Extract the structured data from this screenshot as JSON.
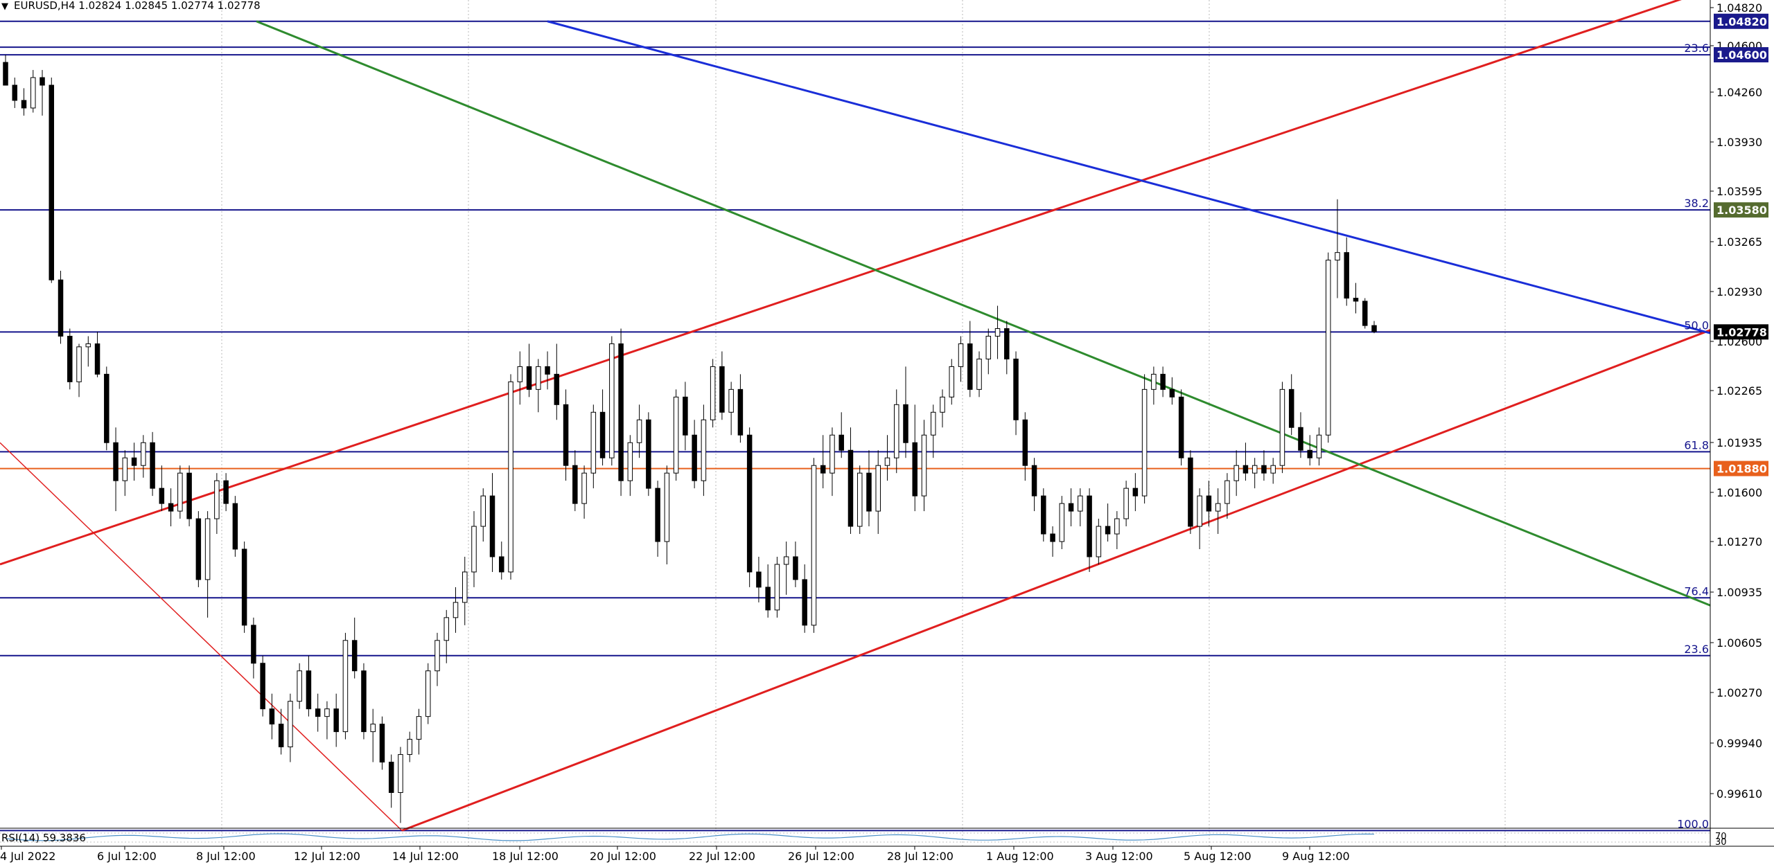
{
  "header": {
    "symbol_line": "EURUSD,H4  1.02824 1.02845 1.02774 1.02778"
  },
  "price_axis": {
    "ticks": [
      "1.04820",
      "1.04600",
      "1.04260",
      "1.03930",
      "1.03595",
      "1.03265",
      "1.02930",
      "1.02600",
      "1.02265",
      "1.01935",
      "1.01600",
      "1.01270",
      "1.00935",
      "1.00605",
      "1.00270",
      "0.99940",
      "0.99610"
    ],
    "current_price": "1.02778",
    "level_tags": [
      {
        "price": 1.0482,
        "label": "1.04820",
        "color": "#1a1a8c"
      },
      {
        "price": 1.046,
        "label": "1.04600",
        "color": "#1a1a8c"
      },
      {
        "price": 1.0358,
        "label": "1.03580",
        "color": "#556b2f"
      },
      {
        "price": 1.02778,
        "label": "1.02778",
        "color": "#000000"
      },
      {
        "price": 1.0188,
        "label": "1.01880",
        "color": "#e8601c"
      }
    ]
  },
  "time_axis": {
    "labels": [
      "4 Jul 2022",
      "6 Jul 12:00",
      "8 Jul 12:00",
      "12 Jul 12:00",
      "14 Jul 12:00",
      "18 Jul 12:00",
      "20 Jul 12:00",
      "22 Jul 12:00",
      "26 Jul 12:00",
      "28 Jul 12:00",
      "1 Aug 12:00",
      "3 Aug 12:00",
      "5 Aug 12:00",
      "9 Aug 12:00"
    ]
  },
  "fibonacci": {
    "levels": [
      {
        "label": "23.6",
        "price": 1.046
      },
      {
        "label": "38.2",
        "price": 1.0358
      },
      {
        "label": "50.0",
        "price": 1.02778
      },
      {
        "label": "61.8",
        "price": 1.0199
      },
      {
        "label": "76.4",
        "price": 1.0103
      },
      {
        "label": "23.6",
        "price": 1.0065
      },
      {
        "label": "100.0",
        "price": 0.995
      }
    ],
    "top_line_price": 1.0482,
    "extra_top_price": 1.0465,
    "orange_line_price": 1.0188
  },
  "indicator": {
    "label": "RSI(14) 59.3836",
    "scale_top": "70",
    "scale_bottom": "30"
  },
  "colors": {
    "fib_line": "#14148c",
    "blue_trend": "#1a2ed8",
    "green_trend": "#2e8b2e",
    "red_trend": "#e01f1f",
    "orange_line": "#e8601c",
    "bull_candle_fill": "#ffffff",
    "bear_candle_fill": "#000000"
  },
  "candles": [
    [
      1.0455,
      1.046,
      1.044,
      1.044
    ],
    [
      1.044,
      1.0445,
      1.0425,
      1.043
    ],
    [
      1.043,
      1.0438,
      1.042,
      1.0425
    ],
    [
      1.0425,
      1.045,
      1.0422,
      1.0445
    ],
    [
      1.0445,
      1.045,
      1.042,
      1.044
    ],
    [
      1.044,
      1.0445,
      1.031,
      1.0312
    ],
    [
      1.0312,
      1.0318,
      1.027,
      1.0275
    ],
    [
      1.0275,
      1.028,
      1.024,
      1.0245
    ],
    [
      1.0245,
      1.027,
      1.0235,
      1.0268
    ],
    [
      1.0268,
      1.0275,
      1.0255,
      1.027
    ],
    [
      1.027,
      1.0278,
      1.0248,
      1.025
    ],
    [
      1.025,
      1.0255,
      1.02,
      1.0205
    ],
    [
      1.0205,
      1.0215,
      1.016,
      1.018
    ],
    [
      1.018,
      1.02,
      1.017,
      1.0195
    ],
    [
      1.0195,
      1.0205,
      1.018,
      1.019
    ],
    [
      1.019,
      1.021,
      1.0182,
      1.0205
    ],
    [
      1.0205,
      1.0212,
      1.017,
      1.0175
    ],
    [
      1.0175,
      1.019,
      1.016,
      1.0165
    ],
    [
      1.0165,
      1.0175,
      1.015,
      1.016
    ],
    [
      1.016,
      1.019,
      1.0155,
      1.0185
    ],
    [
      1.0185,
      1.019,
      1.015,
      1.0155
    ],
    [
      1.0155,
      1.016,
      1.011,
      1.0115
    ],
    [
      1.0115,
      1.016,
      1.009,
      1.0155
    ],
    [
      1.0155,
      1.0185,
      1.0145,
      1.018
    ],
    [
      1.018,
      1.0185,
      1.016,
      1.0165
    ],
    [
      1.0165,
      1.017,
      1.013,
      1.0135
    ],
    [
      1.0135,
      1.014,
      1.008,
      1.0085
    ],
    [
      1.0085,
      1.009,
      1.005,
      1.006
    ],
    [
      1.006,
      1.0065,
      1.0025,
      1.003
    ],
    [
      1.003,
      1.004,
      1.001,
      1.002
    ],
    [
      1.002,
      1.003,
      1.0,
      1.0005
    ],
    [
      1.0005,
      1.004,
      0.9995,
      1.0035
    ],
    [
      1.0035,
      1.006,
      1.003,
      1.0055
    ],
    [
      1.0055,
      1.0065,
      1.0025,
      1.003
    ],
    [
      1.003,
      1.004,
      1.0015,
      1.0025
    ],
    [
      1.0025,
      1.0035,
      1.001,
      1.003
    ],
    [
      1.003,
      1.004,
      1.0005,
      1.0015
    ],
    [
      1.0015,
      1.008,
      1.001,
      1.0075
    ],
    [
      1.0075,
      1.009,
      1.005,
      1.0055
    ],
    [
      1.0055,
      1.006,
      1.001,
      1.0015
    ],
    [
      1.0015,
      1.003,
      0.9995,
      1.002
    ],
    [
      1.002,
      1.0025,
      0.999,
      0.9995
    ],
    [
      0.9995,
      1.0,
      0.9965,
      0.9975
    ],
    [
      0.9975,
      1.0005,
      0.9955,
      1.0
    ],
    [
      1.0,
      1.0015,
      0.9995,
      1.001
    ],
    [
      1.001,
      1.003,
      1.0,
      1.0025
    ],
    [
      1.0025,
      1.006,
      1.002,
      1.0055
    ],
    [
      1.0055,
      1.008,
      1.0045,
      1.0075
    ],
    [
      1.0075,
      1.0095,
      1.006,
      1.009
    ],
    [
      1.009,
      1.011,
      1.008,
      1.01
    ],
    [
      1.01,
      1.013,
      1.0085,
      1.012
    ],
    [
      1.012,
      1.016,
      1.011,
      1.015
    ],
    [
      1.015,
      1.0175,
      1.014,
      1.017
    ],
    [
      1.017,
      1.0185,
      1.012,
      1.013
    ],
    [
      1.013,
      1.014,
      1.0115,
      1.012
    ],
    [
      1.012,
      1.025,
      1.0115,
      1.0245
    ],
    [
      1.0245,
      1.0265,
      1.023,
      1.0255
    ],
    [
      1.0255,
      1.027,
      1.0235,
      1.024
    ],
    [
      1.024,
      1.026,
      1.0225,
      1.0255
    ],
    [
      1.0255,
      1.0265,
      1.024,
      1.025
    ],
    [
      1.025,
      1.027,
      1.022,
      1.023
    ],
    [
      1.023,
      1.024,
      1.018,
      1.019
    ],
    [
      1.019,
      1.02,
      1.016,
      1.0165
    ],
    [
      1.0165,
      1.019,
      1.0155,
      1.0185
    ],
    [
      1.0185,
      1.023,
      1.0175,
      1.0225
    ],
    [
      1.0225,
      1.024,
      1.019,
      1.0195
    ],
    [
      1.0195,
      1.0275,
      1.019,
      1.027
    ],
    [
      1.027,
      1.028,
      1.017,
      1.018
    ],
    [
      1.018,
      1.021,
      1.017,
      1.0205
    ],
    [
      1.0205,
      1.023,
      1.0195,
      1.022
    ],
    [
      1.022,
      1.0225,
      1.017,
      1.0175
    ],
    [
      1.0175,
      1.018,
      1.013,
      1.014
    ],
    [
      1.014,
      1.019,
      1.0125,
      1.0185
    ],
    [
      1.0185,
      1.024,
      1.018,
      1.0235
    ],
    [
      1.0235,
      1.0245,
      1.02,
      1.021
    ],
    [
      1.021,
      1.022,
      1.0175,
      1.018
    ],
    [
      1.018,
      1.023,
      1.017,
      1.022
    ],
    [
      1.022,
      1.026,
      1.0215,
      1.0255
    ],
    [
      1.0255,
      1.0265,
      1.022,
      1.0225
    ],
    [
      1.0225,
      1.0245,
      1.021,
      1.024
    ],
    [
      1.024,
      1.025,
      1.0205,
      1.021
    ],
    [
      1.021,
      1.0215,
      1.011,
      1.012
    ],
    [
      1.012,
      1.013,
      1.01,
      1.011
    ],
    [
      1.011,
      1.0125,
      1.009,
      1.0095
    ],
    [
      1.0095,
      1.013,
      1.009,
      1.0125
    ],
    [
      1.0125,
      1.014,
      1.0105,
      1.013
    ],
    [
      1.013,
      1.014,
      1.011,
      1.0115
    ],
    [
      1.0115,
      1.0125,
      1.008,
      1.0085
    ],
    [
      1.0085,
      1.0195,
      1.008,
      1.019
    ],
    [
      1.019,
      1.021,
      1.0175,
      1.0185
    ],
    [
      1.0185,
      1.0215,
      1.017,
      1.021
    ],
    [
      1.021,
      1.0225,
      1.0195,
      1.02
    ],
    [
      1.02,
      1.0215,
      1.0145,
      1.015
    ],
    [
      1.015,
      1.019,
      1.0145,
      1.0185
    ],
    [
      1.0185,
      1.02,
      1.015,
      1.016
    ],
    [
      1.016,
      1.02,
      1.0145,
      1.019
    ],
    [
      1.019,
      1.021,
      1.018,
      1.0195
    ],
    [
      1.0195,
      1.024,
      1.0185,
      1.023
    ],
    [
      1.023,
      1.0255,
      1.0195,
      1.0205
    ],
    [
      1.0205,
      1.023,
      1.016,
      1.017
    ],
    [
      1.017,
      1.022,
      1.016,
      1.021
    ],
    [
      1.021,
      1.023,
      1.0195,
      1.0225
    ],
    [
      1.0225,
      1.024,
      1.0215,
      1.0235
    ],
    [
      1.0235,
      1.026,
      1.023,
      1.0255
    ],
    [
      1.0255,
      1.0275,
      1.0245,
      1.027
    ],
    [
      1.027,
      1.0285,
      1.0235,
      1.024
    ],
    [
      1.024,
      1.0265,
      1.0235,
      1.026
    ],
    [
      1.026,
      1.028,
      1.025,
      1.0275
    ],
    [
      1.0275,
      1.0295,
      1.026,
      1.028
    ],
    [
      1.028,
      1.0285,
      1.025,
      1.026
    ],
    [
      1.026,
      1.0265,
      1.021,
      1.022
    ],
    [
      1.022,
      1.0225,
      1.018,
      1.019
    ],
    [
      1.019,
      1.0195,
      1.016,
      1.017
    ],
    [
      1.017,
      1.0175,
      1.014,
      1.0145
    ],
    [
      1.0145,
      1.015,
      1.013,
      1.014
    ],
    [
      1.014,
      1.017,
      1.0135,
      1.0165
    ],
    [
      1.0165,
      1.0175,
      1.015,
      1.016
    ],
    [
      1.016,
      1.0175,
      1.015,
      1.017
    ],
    [
      1.017,
      1.0175,
      1.012,
      1.013
    ],
    [
      1.013,
      1.0155,
      1.0125,
      1.015
    ],
    [
      1.015,
      1.0165,
      1.014,
      1.0145
    ],
    [
      1.0145,
      1.016,
      1.0135,
      1.0155
    ],
    [
      1.0155,
      1.018,
      1.015,
      1.0175
    ],
    [
      1.0175,
      1.0185,
      1.016,
      1.017
    ],
    [
      1.017,
      1.025,
      1.0165,
      1.024
    ],
    [
      1.024,
      1.0255,
      1.023,
      1.025
    ],
    [
      1.025,
      1.0255,
      1.0235,
      1.024
    ],
    [
      1.024,
      1.0248,
      1.023,
      1.0235
    ],
    [
      1.0235,
      1.024,
      1.019,
      1.0195
    ],
    [
      1.0195,
      1.02,
      1.0145,
      1.015
    ],
    [
      1.015,
      1.0175,
      1.0135,
      1.017
    ],
    [
      1.017,
      1.018,
      1.015,
      1.016
    ],
    [
      1.016,
      1.0175,
      1.0145,
      1.0165
    ],
    [
      1.0165,
      1.0185,
      1.0155,
      1.018
    ],
    [
      1.018,
      1.02,
      1.017,
      1.019
    ],
    [
      1.019,
      1.0205,
      1.018,
      1.0185
    ],
    [
      1.0185,
      1.0195,
      1.0175,
      1.019
    ],
    [
      1.019,
      1.02,
      1.018,
      1.0185
    ],
    [
      1.0185,
      1.0195,
      1.0178,
      1.019
    ],
    [
      1.019,
      1.0245,
      1.0185,
      1.024
    ],
    [
      1.024,
      1.025,
      1.021,
      1.0215
    ],
    [
      1.0215,
      1.0225,
      1.0195,
      1.02
    ],
    [
      1.02,
      1.021,
      1.019,
      1.0195
    ],
    [
      1.0195,
      1.0215,
      1.019,
      1.021
    ],
    [
      1.021,
      1.033,
      1.0205,
      1.0325
    ],
    [
      1.0325,
      1.0365,
      1.03,
      1.033
    ],
    [
      1.033,
      1.034,
      1.0295,
      1.03
    ],
    [
      1.03,
      1.031,
      1.029,
      1.0298
    ],
    [
      1.0298,
      1.03,
      1.028,
      1.0282
    ],
    [
      1.0282,
      1.0285,
      1.0277,
      1.0278
    ]
  ]
}
